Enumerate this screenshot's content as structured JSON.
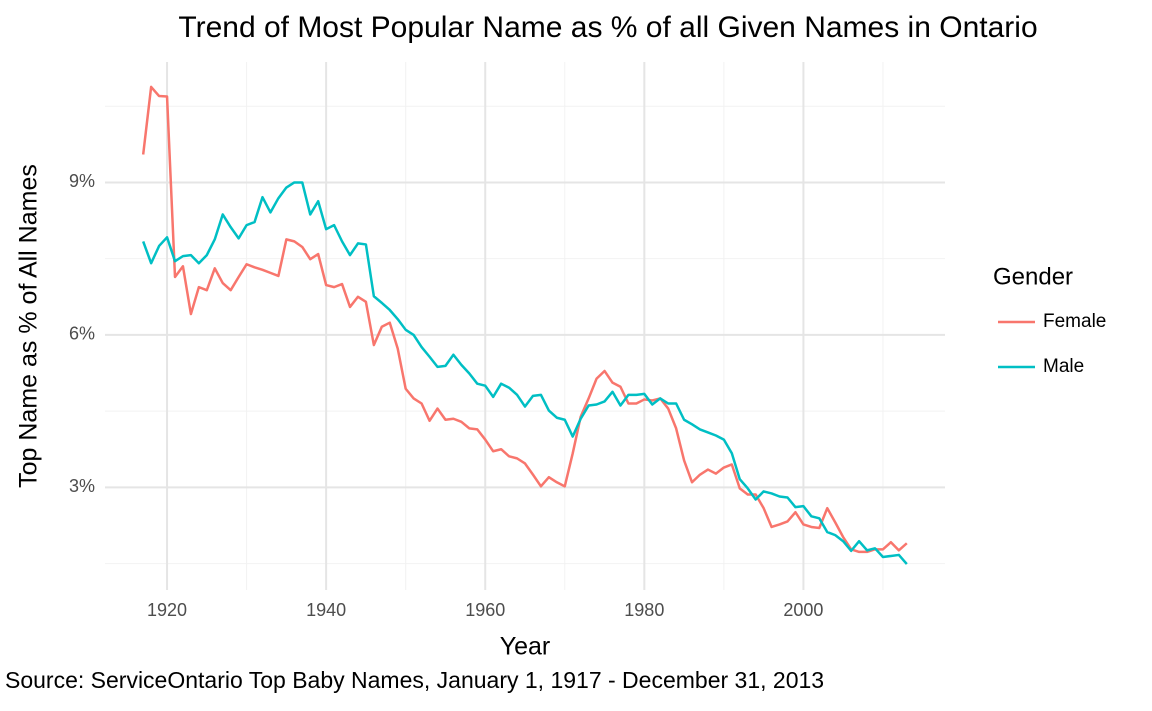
{
  "chart_data": {
    "type": "line",
    "title": "Trend of Most Popular Name as % of all Given Names in Ontario",
    "xlabel": "Year",
    "ylabel": "Top Name as % of All Names",
    "caption": "Source: ServiceOntario Top Baby Names, January 1, 1917 - December 31, 2013",
    "legend_title": "Gender",
    "legend_position": "right",
    "grid": true,
    "xlim": [
      1912.2,
      2017.8
    ],
    "xticks": [
      1920,
      1940,
      1960,
      1980,
      2000
    ],
    "xminor": [
      1930,
      1950,
      1970,
      1990,
      2010
    ],
    "ylim": [
      0.98,
      11.37
    ],
    "yticks": [
      {
        "value": 3,
        "label": "3%"
      },
      {
        "value": 6,
        "label": "6%"
      },
      {
        "value": 9,
        "label": "9%"
      }
    ],
    "yminor": [
      1.5,
      4.5,
      7.5,
      10.5
    ],
    "x": [
      1917,
      1918,
      1919,
      1920,
      1921,
      1922,
      1923,
      1924,
      1925,
      1926,
      1927,
      1928,
      1929,
      1930,
      1931,
      1932,
      1933,
      1934,
      1935,
      1936,
      1937,
      1938,
      1939,
      1940,
      1941,
      1942,
      1943,
      1944,
      1945,
      1946,
      1947,
      1948,
      1949,
      1950,
      1951,
      1952,
      1953,
      1954,
      1955,
      1956,
      1957,
      1958,
      1959,
      1960,
      1961,
      1962,
      1963,
      1964,
      1965,
      1966,
      1967,
      1968,
      1969,
      1970,
      1971,
      1972,
      1973,
      1974,
      1975,
      1976,
      1977,
      1978,
      1979,
      1980,
      1981,
      1982,
      1983,
      1984,
      1985,
      1986,
      1987,
      1988,
      1989,
      1990,
      1991,
      1992,
      1993,
      1994,
      1995,
      1996,
      1997,
      1998,
      1999,
      2000,
      2001,
      2002,
      2003,
      2004,
      2005,
      2006,
      2007,
      2008,
      2009,
      2010,
      2011,
      2012,
      2013
    ],
    "series": [
      {
        "name": "Female",
        "color": "#F8766D",
        "values": [
          9.55,
          10.88,
          10.7,
          10.69,
          7.14,
          7.35,
          6.41,
          6.94,
          6.88,
          7.31,
          7.02,
          6.88,
          7.14,
          7.39,
          7.33,
          7.28,
          7.22,
          7.16,
          7.88,
          7.84,
          7.73,
          7.49,
          7.59,
          6.98,
          6.94,
          7.0,
          6.55,
          6.75,
          6.65,
          5.8,
          6.16,
          6.24,
          5.73,
          4.94,
          4.75,
          4.65,
          4.31,
          4.55,
          4.33,
          4.35,
          4.29,
          4.16,
          4.14,
          3.94,
          3.71,
          3.75,
          3.61,
          3.57,
          3.47,
          3.25,
          3.02,
          3.2,
          3.1,
          3.02,
          3.67,
          4.39,
          4.75,
          5.14,
          5.29,
          5.06,
          4.98,
          4.65,
          4.65,
          4.73,
          4.71,
          4.75,
          4.55,
          4.16,
          3.53,
          3.1,
          3.25,
          3.35,
          3.27,
          3.39,
          3.45,
          2.98,
          2.86,
          2.86,
          2.59,
          2.22,
          2.27,
          2.33,
          2.51,
          2.27,
          2.22,
          2.2,
          2.59,
          2.31,
          2.02,
          1.78,
          1.73,
          1.73,
          1.78,
          1.78,
          1.92,
          1.76,
          1.9
        ]
      },
      {
        "name": "Male",
        "color": "#00BFC4",
        "values": [
          7.84,
          7.41,
          7.75,
          7.92,
          7.45,
          7.55,
          7.57,
          7.41,
          7.57,
          7.88,
          8.37,
          8.12,
          7.9,
          8.16,
          8.22,
          8.71,
          8.41,
          8.69,
          8.9,
          9.0,
          9.0,
          8.37,
          8.63,
          8.08,
          8.16,
          7.84,
          7.57,
          7.8,
          7.78,
          6.76,
          6.63,
          6.49,
          6.31,
          6.1,
          6.0,
          5.76,
          5.57,
          5.37,
          5.39,
          5.61,
          5.41,
          5.24,
          5.04,
          5.0,
          4.78,
          5.04,
          4.96,
          4.82,
          4.59,
          4.8,
          4.82,
          4.51,
          4.37,
          4.33,
          4.0,
          4.35,
          4.61,
          4.63,
          4.69,
          4.88,
          4.61,
          4.82,
          4.82,
          4.84,
          4.63,
          4.75,
          4.65,
          4.65,
          4.33,
          4.24,
          4.14,
          4.08,
          4.02,
          3.94,
          3.67,
          3.16,
          2.98,
          2.76,
          2.92,
          2.88,
          2.82,
          2.8,
          2.61,
          2.63,
          2.43,
          2.39,
          2.12,
          2.06,
          1.94,
          1.75,
          1.94,
          1.76,
          1.8,
          1.63,
          1.65,
          1.67,
          1.49
        ]
      }
    ]
  }
}
